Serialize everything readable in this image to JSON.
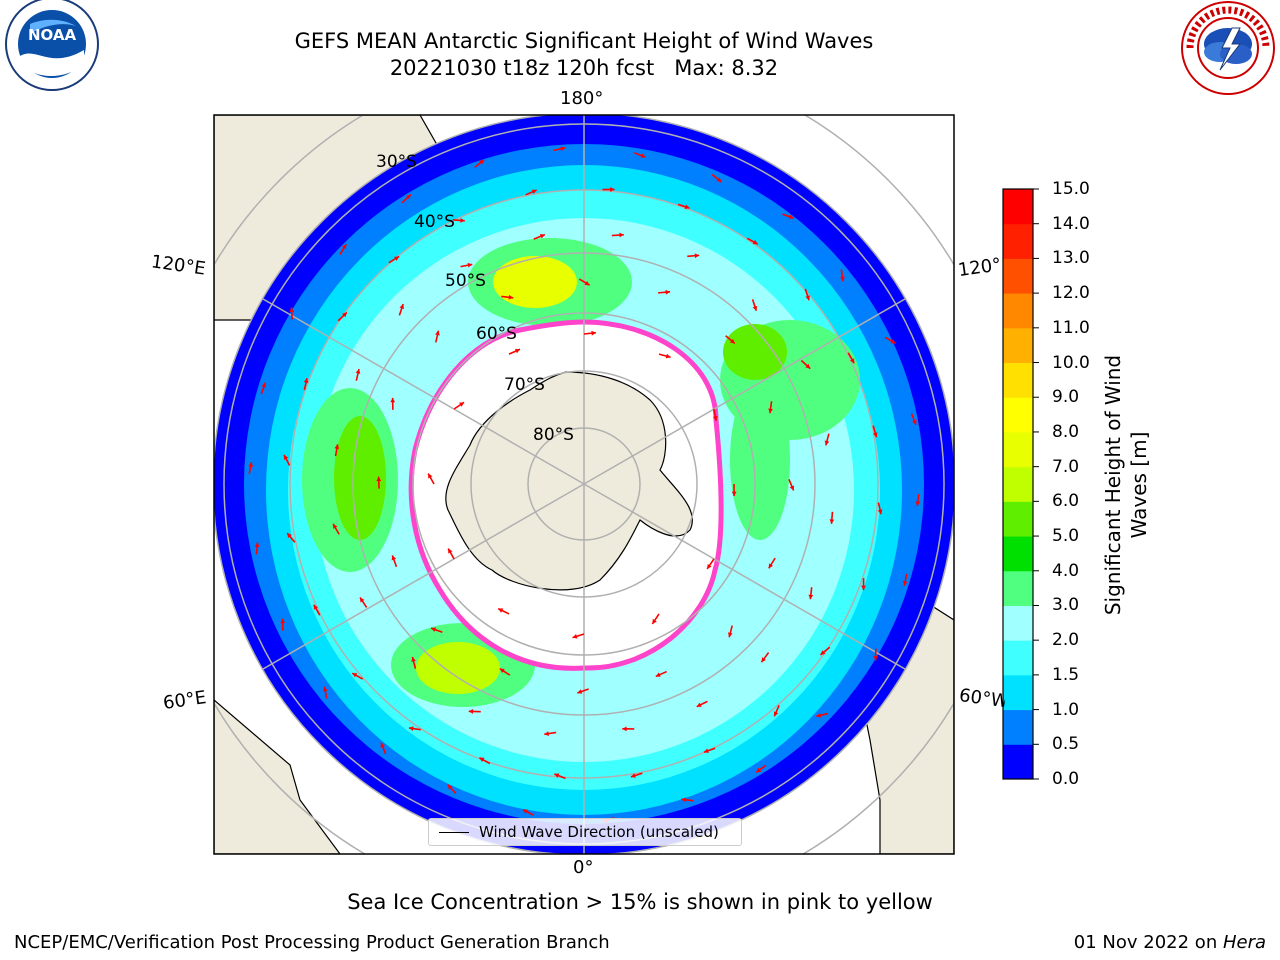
{
  "header": {
    "title_line1": "GEFS MEAN Antarctic Significant Height of Wind Waves",
    "title_line2": "20221030 t18z 120h fcst   Max: 8.32"
  },
  "logos": {
    "left": "NOAA",
    "left_ring": "NATIONAL OCEANIC AND ATMOSPHERIC ADMINISTRATION · U.S. DEPARTMENT OF COMMERCE",
    "right_ring": "NATIONAL WEATHER SERVICE"
  },
  "map": {
    "lon_labels": {
      "top": "180°",
      "bottom": "0°",
      "left_upper": "120°E",
      "left_lower": "60°E",
      "right_upper": "120°",
      "right_lower": "60°W"
    },
    "lat_labels": [
      "30°S",
      "40°S",
      "50°S",
      "60°S",
      "70°S",
      "80°S"
    ],
    "legend": "Wind Wave Direction (unscaled)",
    "colors": {
      "land": "#efebdc",
      "ice": "#ffffff",
      "grid": "#b0b0b0",
      "arrows": "#ff0000",
      "sea_ice_edge": "#ff44cc"
    }
  },
  "colorbar": {
    "label_line1": "Significant Height of Wind",
    "label_line2": "Waves [m]",
    "ticks": [
      "0.0",
      "0.5",
      "1.0",
      "1.5",
      "2.0",
      "3.0",
      "4.0",
      "5.0",
      "6.0",
      "7.0",
      "8.0",
      "9.0",
      "10.0",
      "11.0",
      "12.0",
      "13.0",
      "14.0",
      "15.0"
    ],
    "colors": [
      "#0000ff",
      "#0080ff",
      "#00e0ff",
      "#40ffff",
      "#a0ffff",
      "#50ff80",
      "#00e000",
      "#60ee00",
      "#c0ff00",
      "#e8ff00",
      "#ffff00",
      "#ffe000",
      "#ffb000",
      "#ff8800",
      "#ff5000",
      "#ff2000",
      "#ff0000"
    ]
  },
  "footer": {
    "note": "Sea Ice Concentration > 15% is shown in pink to yellow",
    "credit_left": "NCEP/EMC/Verification Post Processing Product Generation Branch",
    "credit_date": "01 Nov 2022 on ",
    "credit_machine": "Hera"
  }
}
